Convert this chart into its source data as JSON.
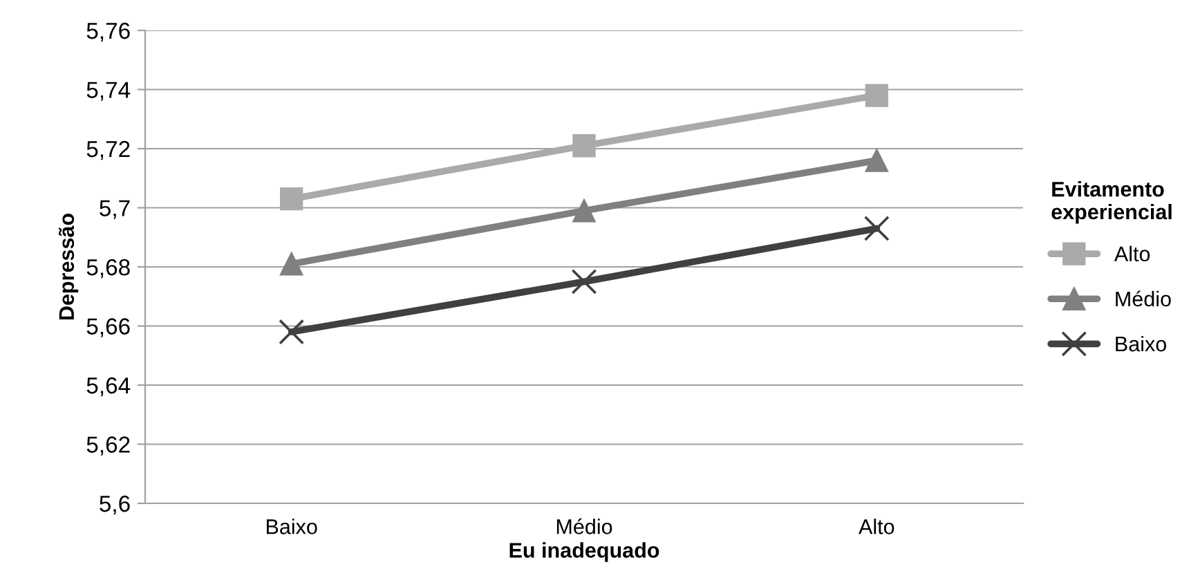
{
  "chart_data": {
    "type": "line",
    "xlabel": "Eu inadequado",
    "ylabel": "Depressão",
    "legend_title": "Evitamento experiencial",
    "categories": [
      "Baixo",
      "Médio",
      "Alto"
    ],
    "series": [
      {
        "name": "Alto",
        "color": "#aaaaaa",
        "marker": "square",
        "values": [
          5.703,
          5.721,
          5.738
        ]
      },
      {
        "name": "Médio",
        "color": "#808080",
        "marker": "triangle",
        "values": [
          5.681,
          5.699,
          5.716
        ]
      },
      {
        "name": "Baixo",
        "color": "#404040",
        "marker": "cross",
        "values": [
          5.658,
          5.675,
          5.693
        ]
      }
    ],
    "ylim": [
      5.6,
      5.76
    ],
    "yticks": [
      {
        "value": 5.6,
        "label": "5,6"
      },
      {
        "value": 5.62,
        "label": "5,62"
      },
      {
        "value": 5.64,
        "label": "5,64"
      },
      {
        "value": 5.66,
        "label": "5,66"
      },
      {
        "value": 5.68,
        "label": "5,68"
      },
      {
        "value": 5.7,
        "label": "5,7"
      },
      {
        "value": 5.72,
        "label": "5,72"
      },
      {
        "value": 5.74,
        "label": "5,74"
      },
      {
        "value": 5.76,
        "label": "5,76"
      }
    ],
    "grid": "y",
    "legend": "right",
    "line_style": "solid"
  }
}
